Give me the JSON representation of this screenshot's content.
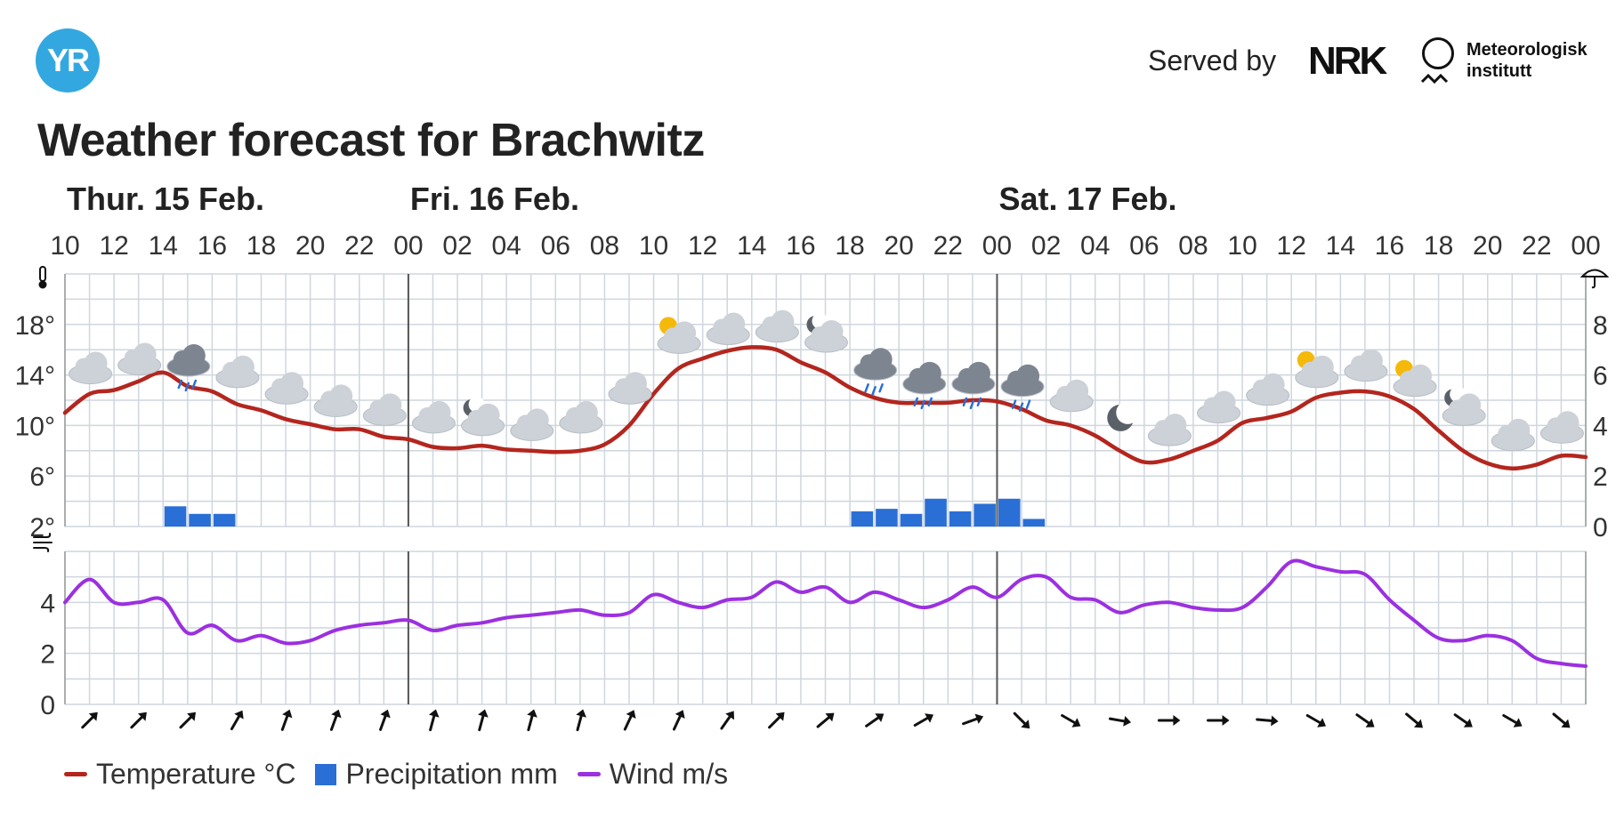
{
  "header": {
    "logo_text": "YR",
    "served_by": "Served by",
    "nrk_text": "NRK",
    "met_line1": "Meteorologisk",
    "met_line2": "institutt",
    "title": "Weather forecast for Brachwitz"
  },
  "colors": {
    "temperature": "#b3261e",
    "precipitation": "#2a6fd6",
    "wind": "#9b30e0",
    "grid": "#cfd6de",
    "day_divider": "#555555",
    "cloud": "#cdd2d8",
    "rain_cloud": "#7d8590",
    "sun": "#f5b90a",
    "moon": "#5a6068"
  },
  "chart_data": {
    "type": "line",
    "days": [
      {
        "label": "Thur. 15 Feb.",
        "start_index": 0
      },
      {
        "label": "Fri. 16 Feb.",
        "start_index": 14
      },
      {
        "label": "Sat. 17 Feb.",
        "start_index": 38
      }
    ],
    "hour_labels": [
      "10",
      "12",
      "14",
      "16",
      "18",
      "20",
      "22",
      "00",
      "02",
      "04",
      "06",
      "08",
      "10",
      "12",
      "14",
      "16",
      "18",
      "20",
      "22",
      "00",
      "02",
      "04",
      "06",
      "08",
      "10",
      "12",
      "14",
      "16",
      "18",
      "20",
      "22",
      "00"
    ],
    "temp_axis": {
      "ticks": [
        2,
        6,
        10,
        14,
        18
      ],
      "labels": [
        "2°",
        "6°",
        "10°",
        "14°",
        "18°"
      ],
      "range": [
        2,
        22
      ]
    },
    "precip_axis": {
      "ticks": [
        0,
        2,
        4,
        6,
        8
      ],
      "labels": [
        "0",
        "2",
        "4",
        "6",
        "8"
      ],
      "range": [
        0,
        10
      ]
    },
    "wind_axis": {
      "ticks": [
        0,
        2,
        4
      ],
      "labels": [
        "0",
        "2",
        "4"
      ],
      "range": [
        0,
        6
      ]
    },
    "temperature": [
      11.0,
      12.5,
      12.8,
      13.5,
      14.2,
      13.1,
      12.7,
      11.7,
      11.2,
      10.5,
      10.1,
      9.7,
      9.7,
      9.1,
      8.9,
      8.3,
      8.2,
      8.4,
      8.1,
      8.0,
      7.9,
      8.0,
      8.5,
      10.0,
      12.5,
      14.5,
      15.3,
      15.9,
      16.2,
      16.0,
      15.0,
      14.2,
      13.0,
      12.2,
      11.8,
      11.8,
      11.8,
      12.0,
      11.9,
      11.3,
      10.4,
      10.0,
      9.2,
      8.0,
      7.1,
      7.3,
      8.0,
      8.8,
      10.2,
      10.6,
      11.1,
      12.2,
      12.6,
      12.7,
      12.3,
      11.3,
      9.6,
      8.0,
      7.0,
      6.6,
      6.9,
      7.6,
      7.5
    ],
    "wind": [
      4.0,
      4.9,
      4.0,
      4.0,
      4.1,
      2.8,
      3.1,
      2.5,
      2.7,
      2.4,
      2.5,
      2.9,
      3.1,
      3.2,
      3.3,
      2.9,
      3.1,
      3.2,
      3.4,
      3.5,
      3.6,
      3.7,
      3.5,
      3.6,
      4.3,
      4.0,
      3.8,
      4.1,
      4.2,
      4.8,
      4.4,
      4.6,
      4.0,
      4.4,
      4.1,
      3.8,
      4.1,
      4.6,
      4.2,
      4.9,
      5.0,
      4.2,
      4.1,
      3.6,
      3.9,
      4.0,
      3.8,
      3.7,
      3.8,
      4.6,
      5.6,
      5.4,
      5.2,
      5.1,
      4.1,
      3.3,
      2.6,
      2.5,
      2.7,
      2.5,
      1.8,
      1.6,
      1.5
    ],
    "precipitation": [
      {
        "index": 4,
        "value": 0.8
      },
      {
        "index": 5,
        "value": 0.5
      },
      {
        "index": 6,
        "value": 0.5
      },
      {
        "index": 32,
        "value": 0.6
      },
      {
        "index": 33,
        "value": 0.7
      },
      {
        "index": 34,
        "value": 0.5
      },
      {
        "index": 35,
        "value": 1.1
      },
      {
        "index": 36,
        "value": 0.6
      },
      {
        "index": 37,
        "value": 0.9
      },
      {
        "index": 38,
        "value": 1.1
      },
      {
        "index": 39,
        "value": 0.3
      }
    ],
    "weather_symbols": [
      {
        "index": 1,
        "type": "cloud",
        "temp": 14.5
      },
      {
        "index": 3,
        "type": "cloud",
        "temp": 15.2
      },
      {
        "index": 5,
        "type": "rain",
        "temp": 15.1
      },
      {
        "index": 7,
        "type": "cloud",
        "temp": 14.2
      },
      {
        "index": 9,
        "type": "cloud",
        "temp": 12.9
      },
      {
        "index": 11,
        "type": "cloud",
        "temp": 11.9
      },
      {
        "index": 13,
        "type": "cloud",
        "temp": 11.2
      },
      {
        "index": 15,
        "type": "cloud",
        "temp": 10.6
      },
      {
        "index": 17,
        "type": "moon-cloud",
        "temp": 10.4
      },
      {
        "index": 19,
        "type": "cloud",
        "temp": 10.0
      },
      {
        "index": 21,
        "type": "cloud",
        "temp": 10.6
      },
      {
        "index": 23,
        "type": "cloud",
        "temp": 12.9
      },
      {
        "index": 25,
        "type": "sun-cloud",
        "temp": 16.9
      },
      {
        "index": 27,
        "type": "cloud",
        "temp": 17.6
      },
      {
        "index": 29,
        "type": "cloud",
        "temp": 17.8
      },
      {
        "index": 31,
        "type": "moon-cloud",
        "temp": 17.0
      },
      {
        "index": 33,
        "type": "rain",
        "temp": 14.8
      },
      {
        "index": 35,
        "type": "rain",
        "temp": 13.7
      },
      {
        "index": 37,
        "type": "rain",
        "temp": 13.7
      },
      {
        "index": 39,
        "type": "rain",
        "temp": 13.5
      },
      {
        "index": 41,
        "type": "cloud",
        "temp": 12.3
      },
      {
        "index": 43,
        "type": "moon",
        "temp": 10.6
      },
      {
        "index": 45,
        "type": "cloud",
        "temp": 9.6
      },
      {
        "index": 47,
        "type": "cloud",
        "temp": 11.4
      },
      {
        "index": 49,
        "type": "cloud",
        "temp": 12.8
      },
      {
        "index": 51,
        "type": "sun-cloud",
        "temp": 14.2
      },
      {
        "index": 53,
        "type": "cloud",
        "temp": 14.7
      },
      {
        "index": 55,
        "type": "sun-cloud",
        "temp": 13.5
      },
      {
        "index": 57,
        "type": "moon-cloud",
        "temp": 11.2
      },
      {
        "index": 59,
        "type": "cloud",
        "temp": 9.2
      },
      {
        "index": 61,
        "type": "cloud",
        "temp": 9.8
      }
    ],
    "wind_directions_deg": [
      45,
      45,
      45,
      30,
      20,
      20,
      20,
      15,
      15,
      15,
      15,
      25,
      25,
      35,
      45,
      50,
      55,
      60,
      70,
      135,
      120,
      100,
      90,
      90,
      95,
      120,
      125,
      130,
      125,
      120,
      130,
      145
    ],
    "legend": [
      {
        "label": "Temperature °C",
        "kind": "line",
        "color": "#b3261e"
      },
      {
        "label": "Precipitation mm",
        "kind": "box",
        "color": "#2a6fd6"
      },
      {
        "label": "Wind m/s",
        "kind": "line",
        "color": "#9b30e0"
      }
    ]
  }
}
